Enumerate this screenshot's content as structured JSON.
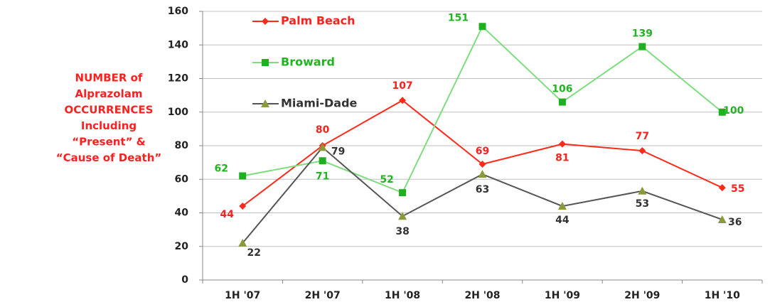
{
  "chart_data": {
    "type": "line",
    "y_label": [
      "NUMBER of",
      "Alprazolam",
      "OCCURRENCES",
      "Including",
      "“Present”  &",
      "“Cause of Death”"
    ],
    "categories": [
      "1H '07",
      "2H '07",
      "1H '08",
      "2H '08",
      "1H '09",
      "2H '09",
      "1H '10"
    ],
    "series": [
      {
        "name": "Palm Beach",
        "color": "#ff2a1a",
        "marker_color": "#ff2a1a",
        "marker": "diamond",
        "values": [
          44,
          80,
          107,
          69,
          81,
          77,
          55
        ]
      },
      {
        "name": "Broward",
        "color": "#7fdc7f",
        "marker_color": "#1fb01f",
        "marker": "square",
        "values": [
          62,
          71,
          52,
          151,
          106,
          139,
          100
        ]
      },
      {
        "name": "Miami-Dade",
        "color": "#555555",
        "marker_color": "#8a9a3a",
        "marker": "triangle",
        "values": [
          22,
          79,
          38,
          63,
          44,
          53,
          36
        ]
      }
    ],
    "label_colors": [
      "#ff2020",
      "#22b422",
      "#333333"
    ],
    "ylim": [
      0,
      160
    ],
    "yticks": [
      0,
      20,
      40,
      60,
      80,
      100,
      120,
      140,
      160
    ],
    "grid": true
  }
}
